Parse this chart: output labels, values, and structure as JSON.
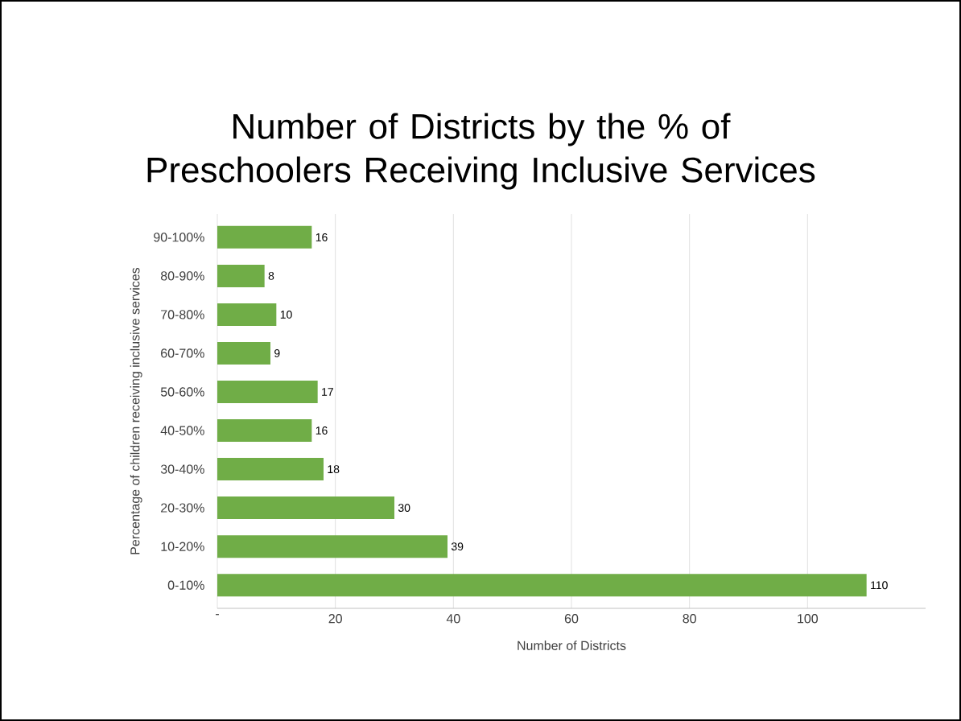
{
  "chart_data": {
    "type": "bar",
    "orientation": "horizontal",
    "title": "Number of Districts by the % of Preschoolers Receiving Inclusive Services",
    "xlabel": "Number of Districts",
    "ylabel": "Percentage of children receiving inclusive services",
    "categories": [
      "90-100%",
      "80-90%",
      "70-80%",
      "60-70%",
      "50-60%",
      "40-50%",
      "30-40%",
      "20-30%",
      "10-20%",
      "0-10%"
    ],
    "values": [
      16,
      8,
      10,
      9,
      17,
      16,
      18,
      30,
      39,
      110
    ],
    "color": "#70ad47",
    "data_labels": true,
    "xlim": [
      0,
      120
    ],
    "xticks": [
      {
        "value": 0,
        "label": "-"
      },
      20,
      40,
      60,
      80,
      100
    ],
    "grid": "x"
  }
}
